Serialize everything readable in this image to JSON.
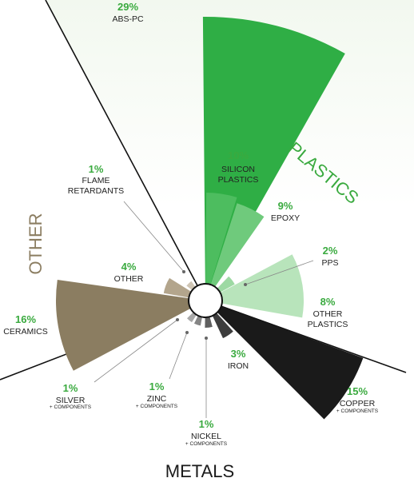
{
  "chart_data": {
    "type": "polar-area",
    "groups": [
      {
        "key": "plastics",
        "label": "PLASTICS",
        "color": "#3aaa3f"
      },
      {
        "key": "metals",
        "label": "METALS",
        "color": "#1a1a1a"
      },
      {
        "key": "other",
        "label": "OTHER",
        "color": "#8b7d61"
      }
    ],
    "slices": [
      {
        "key": "abs",
        "group": "plastics",
        "pct": "29%",
        "value": 29,
        "label": [
          "ABS-PC"
        ],
        "sub": "",
        "color": "#2fae45"
      },
      {
        "key": "silicon",
        "group": "plastics",
        "pct": "10%",
        "value": 10,
        "label": [
          "SILICON",
          "PLASTICS"
        ],
        "sub": "",
        "color": "#4dbd5f"
      },
      {
        "key": "epoxy",
        "group": "plastics",
        "pct": "9%",
        "value": 9,
        "label": [
          "EPOXY"
        ],
        "sub": "",
        "color": "#6fca7c"
      },
      {
        "key": "pps",
        "group": "plastics",
        "pct": "2%",
        "value": 2,
        "label": [
          "PPS"
        ],
        "sub": "",
        "color": "#9dd9a3"
      },
      {
        "key": "otherplastics",
        "group": "plastics",
        "pct": "8%",
        "value": 8,
        "label": [
          "OTHER",
          "PLASTICS"
        ],
        "sub": "",
        "color": "#b8e4bb"
      },
      {
        "key": "copper",
        "group": "metals",
        "pct": "15%",
        "value": 15,
        "label": [
          "COPPER"
        ],
        "sub": "+ COMPONENTS",
        "color": "#1a1a1a"
      },
      {
        "key": "iron",
        "group": "metals",
        "pct": "3%",
        "value": 3,
        "label": [
          "IRON"
        ],
        "sub": "",
        "color": "#3d3d3d"
      },
      {
        "key": "nickel",
        "group": "metals",
        "pct": "1%",
        "value": 1,
        "label": [
          "NICKEL"
        ],
        "sub": "+ COMPONENTS",
        "color": "#5f5f5f"
      },
      {
        "key": "zinc",
        "group": "metals",
        "pct": "1%",
        "value": 1,
        "label": [
          "ZINC"
        ],
        "sub": "+ COMPONENTS",
        "color": "#858585"
      },
      {
        "key": "silver",
        "group": "metals",
        "pct": "1%",
        "value": 1,
        "label": [
          "SILVER"
        ],
        "sub": "+ COMPONENTS",
        "color": "#a8a8a8"
      },
      {
        "key": "ceramics",
        "group": "other",
        "pct": "16%",
        "value": 16,
        "label": [
          "CERAMICS"
        ],
        "sub": "",
        "color": "#8b7d61"
      },
      {
        "key": "other",
        "group": "other",
        "pct": "4%",
        "value": 4,
        "label": [
          "OTHER"
        ],
        "sub": "",
        "color": "#b3a58c"
      },
      {
        "key": "flame",
        "group": "other",
        "pct": "1%",
        "value": 1,
        "label": [
          "FLAME",
          "RETARDANTS"
        ],
        "sub": "",
        "color": "#cfc5b4"
      }
    ]
  }
}
